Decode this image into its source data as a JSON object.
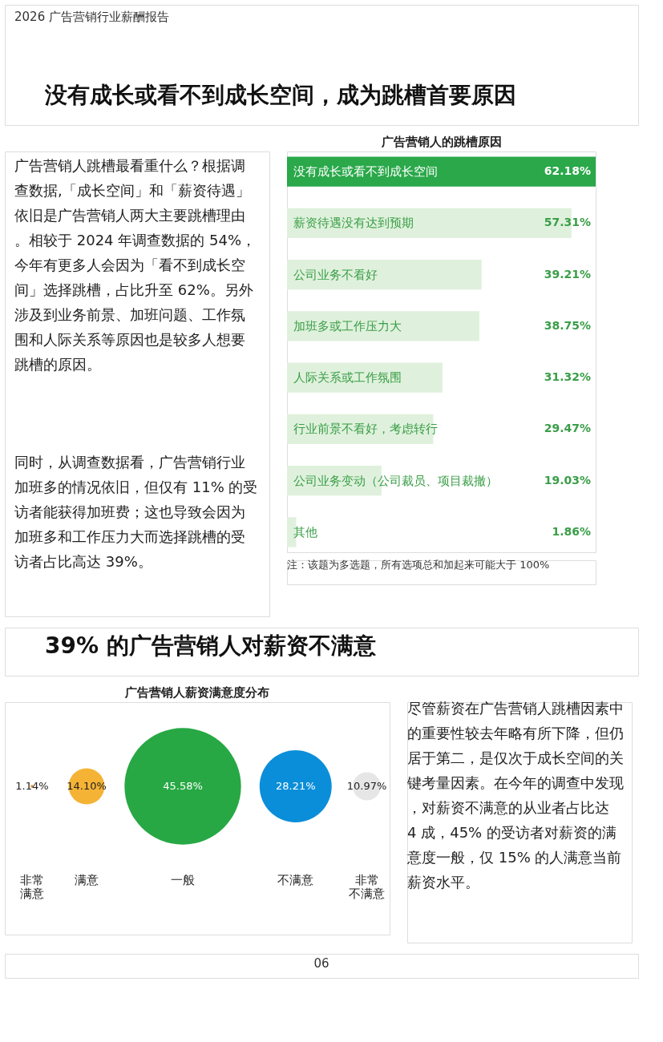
{
  "chart_data": [
    {
      "type": "bar",
      "orientation": "horizontal",
      "title": "广告营销人的跳槽原因",
      "categories": [
        "没有成长或看不到成长空间",
        "薪资待遇没有达到预期",
        "公司业务不看好",
        "加班多或工作压力大",
        "人际关系或工作氛围",
        "行业前景不看好，考虑转行",
        "公司业务变动（公司裁员、项目裁撤）",
        "其他"
      ],
      "values": [
        62.18,
        57.31,
        39.21,
        38.75,
        31.32,
        29.47,
        19.03,
        1.86
      ],
      "value_labels": [
        "62.18%",
        "57.31%",
        "39.21%",
        "38.75%",
        "31.32%",
        "29.47%",
        "19.03%",
        "1.86%"
      ],
      "colors": [
        "#2aa84a",
        "#dff1dc",
        "#dff1dc",
        "#dff1dc",
        "#dff1dc",
        "#dff1dc",
        "#dff1dc",
        "#dff1dc"
      ],
      "annotations": [
        "2026 广告营销行业薪酬报告",
        "没有成长或看不到成长空间，成为跳槽首要原因",
        "广告营销人跳槽最看重什么？根据调查数据,「成长空间」和「薪资待遇」依旧是广告营销人两大主要跳槽理由。相较于 2024 年调查数据的 54%，今年有更多人会因为「看不到成长空间」选择跳槽，占比升至 62%。另外涉及到业务前景、加班问题、工作氛围和人际关系等原因也是较多人想要跳槽的原因。",
        "同时，从调查数据看，广告营销行业加班多的情况依旧，但仅有 11% 的受访者能获得加班费；这也导致会因为加班多和工作压力大而选择跳槽的受访者占比高达 39%。",
        "注：该题为多选题，所有选项总和加起来可能大于 100%"
      ]
    },
    {
      "type": "other",
      "title": "广告营销人薪资满意度分布",
      "categories": [
        "非常满意",
        "满意",
        "一般",
        "不满意",
        "非常不满意"
      ],
      "values": [
        1.14,
        14.1,
        45.58,
        28.21,
        10.97
      ],
      "value_labels": [
        "1.14%",
        "14.10%",
        "45.58%",
        "28.21%",
        "10.97%"
      ],
      "colors": [
        "#f08c2a",
        "#f5b335",
        "#27a844",
        "#0b8ed9",
        "#e6e6e6"
      ],
      "annotations": [
        "39% 的广告营销人对薪资不满意",
        "尽管薪资在广告营销人跳槽因素中的重要性较去年略有所下降，但仍居于第二，是仅次于成长空间的关键考量因素。在今年的调查中发现，对薪资不满意的从业者占比达 4 成，45% 的受访者对薪资的满意度一般，仅 15% 的人满意当前薪资水平。",
        "06"
      ]
    }
  ]
}
